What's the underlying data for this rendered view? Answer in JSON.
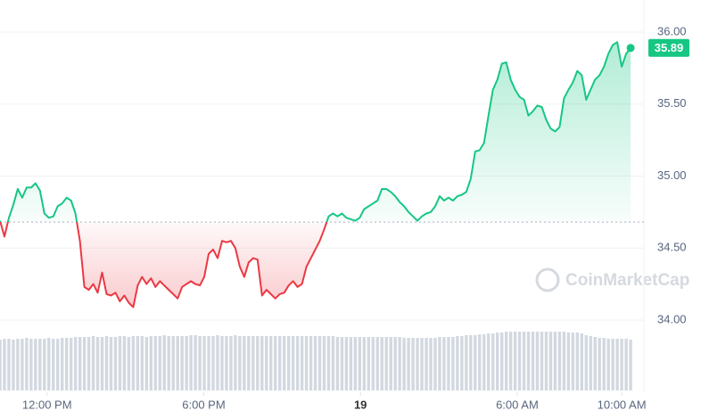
{
  "chart_data": {
    "type": "line",
    "x": [
      10.2,
      10.37,
      10.54,
      10.71,
      10.88,
      11.05,
      11.22,
      11.39,
      11.56,
      11.73,
      11.9,
      12.07,
      12.24,
      12.41,
      12.58,
      12.75,
      12.92,
      13.09,
      13.26,
      13.43,
      13.6,
      13.77,
      13.94,
      14.11,
      14.28,
      14.45,
      14.62,
      14.79,
      14.96,
      15.13,
      15.3,
      15.47,
      15.64,
      15.81,
      15.98,
      16.15,
      16.32,
      16.49,
      16.66,
      16.83,
      17,
      17.17,
      17.34,
      17.51,
      17.68,
      17.85,
      18.02,
      18.19,
      18.36,
      18.53,
      18.7,
      18.87,
      19.04,
      19.21,
      19.38,
      19.55,
      19.72,
      19.89,
      20.06,
      20.23,
      20.4,
      20.57,
      20.74,
      20.91,
      21.08,
      21.25,
      21.42,
      21.59,
      21.76,
      21.93,
      22.1,
      22.27,
      22.44,
      22.61,
      22.78,
      22.95,
      23.12,
      23.29,
      23.46,
      23.63,
      23.8,
      23.97,
      24.14,
      24.31,
      24.48,
      24.65,
      24.82,
      24.99,
      25.16,
      25.33,
      25.5,
      25.67,
      25.84,
      26.01,
      26.18,
      26.35,
      26.52,
      26.69,
      26.86,
      27.03,
      27.2,
      27.37,
      27.54,
      27.71,
      27.88,
      28.05,
      28.22,
      28.39,
      28.56,
      28.73,
      28.9,
      29.07,
      29.24,
      29.41,
      29.58,
      29.75,
      29.92,
      30.09,
      30.26,
      30.43,
      30.6,
      30.77,
      30.94,
      31.11,
      31.28,
      31.45,
      31.62,
      31.79,
      31.96,
      32.13,
      32.3,
      32.47,
      32.64,
      32.81,
      32.98,
      33.15,
      33.32,
      33.49,
      33.66,
      33.83,
      34,
      34.17,
      34.34
    ],
    "series": [
      {
        "color_up": "#16c784",
        "color_down": "#ea3943",
        "values": [
          34.69,
          34.58,
          34.71,
          34.8,
          34.91,
          34.85,
          34.92,
          34.92,
          34.95,
          34.9,
          34.74,
          34.71,
          34.72,
          34.79,
          34.81,
          34.85,
          34.83,
          34.74,
          34.55,
          34.23,
          34.21,
          34.25,
          34.19,
          34.33,
          34.18,
          34.17,
          34.19,
          34.13,
          34.17,
          34.12,
          34.09,
          34.24,
          34.3,
          34.25,
          34.29,
          34.23,
          34.27,
          34.24,
          34.21,
          34.18,
          34.15,
          34.23,
          34.25,
          34.27,
          34.25,
          34.24,
          34.3,
          34.46,
          34.49,
          34.43,
          34.55,
          34.54,
          34.55,
          34.5,
          34.37,
          34.3,
          34.4,
          34.43,
          34.42,
          34.17,
          34.21,
          34.18,
          34.15,
          34.18,
          34.19,
          34.24,
          34.27,
          34.23,
          34.25,
          34.37,
          34.43,
          34.49,
          34.55,
          34.63,
          34.72,
          34.74,
          34.72,
          34.74,
          34.71,
          34.7,
          34.69,
          34.71,
          34.77,
          34.79,
          34.81,
          34.83,
          34.91,
          34.91,
          34.89,
          34.86,
          34.82,
          34.79,
          34.75,
          34.72,
          34.69,
          34.72,
          34.74,
          34.75,
          34.79,
          34.86,
          34.83,
          34.85,
          34.83,
          34.86,
          34.87,
          34.89,
          34.98,
          35.17,
          35.18,
          35.23,
          35.42,
          35.6,
          35.67,
          35.78,
          35.79,
          35.67,
          35.6,
          35.55,
          35.53,
          35.42,
          35.45,
          35.49,
          35.48,
          35.39,
          35.33,
          35.31,
          35.34,
          35.54,
          35.6,
          35.65,
          35.73,
          35.7,
          35.53,
          35.6,
          35.67,
          35.7,
          35.76,
          35.85,
          35.91,
          35.93,
          35.76,
          35.85,
          35.89
        ]
      },
      {
        "axis": "y2",
        "color": "#d3d8e0",
        "values": [
          57,
          58,
          58,
          57,
          58,
          58,
          59,
          58,
          58,
          58,
          58,
          59,
          58,
          58,
          59,
          59,
          59,
          60,
          60,
          60,
          60,
          61,
          60,
          60,
          61,
          60,
          60,
          61,
          61,
          60,
          61,
          61,
          61,
          60,
          61,
          61,
          61,
          62,
          61,
          61,
          61,
          61,
          61,
          62,
          62,
          61,
          61,
          61,
          61,
          62,
          61,
          61,
          61,
          62,
          61,
          61,
          61,
          61,
          61,
          61,
          61,
          61,
          61,
          61,
          61,
          61,
          61,
          61,
          61,
          61,
          61,
          61,
          61,
          61,
          61,
          61,
          60,
          60,
          60,
          60,
          60,
          60,
          60,
          60,
          60,
          60,
          60,
          60,
          60,
          60,
          60,
          59,
          59,
          59,
          59,
          59,
          59,
          59,
          59,
          60,
          60,
          60,
          60,
          61,
          61,
          62,
          62,
          62,
          63,
          63,
          64,
          64,
          65,
          65,
          66,
          66,
          66,
          66,
          66,
          66,
          66,
          66,
          66,
          66,
          66,
          66,
          66,
          66,
          65,
          65,
          65,
          64,
          62,
          61,
          60,
          59,
          59,
          58,
          58,
          58,
          58,
          58,
          57
        ]
      }
    ],
    "baseline": 34.68,
    "last_price": 35.89,
    "watermark": "CoinMarketCap",
    "xlim": [
      10.2,
      34.85
    ],
    "xticks": [
      {
        "value": 12,
        "label": "12:00 PM"
      },
      {
        "value": 18,
        "label": "6:00 PM"
      },
      {
        "value": 24,
        "label": "19"
      },
      {
        "value": 30,
        "label": "6:00 AM"
      },
      {
        "value": 34,
        "label": "10:00 AM"
      }
    ],
    "ylim": [
      34,
      36
    ],
    "yticks": [
      {
        "value": 34,
        "label": "34.00"
      },
      {
        "value": 34.5,
        "label": "34.50"
      },
      {
        "value": 35,
        "label": "35.00"
      },
      {
        "value": 35.5,
        "label": "35.50"
      },
      {
        "value": 36,
        "label": "36.00"
      }
    ],
    "y2lim": [
      0,
      100
    ],
    "grid": true
  }
}
